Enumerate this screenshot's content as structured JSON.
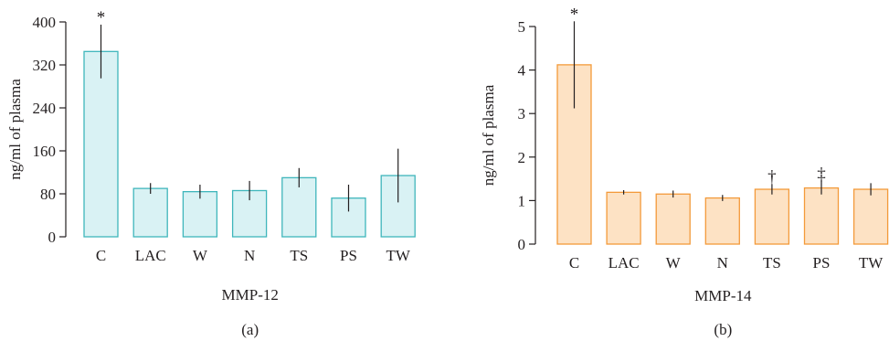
{
  "chart_data": [
    {
      "type": "bar",
      "panel_label": "(a)",
      "xlabel": "MMP-12",
      "ylabel": "ng/ml of plasma",
      "ylim": [
        0,
        400
      ],
      "yticks": [
        0,
        80,
        160,
        240,
        320,
        400
      ],
      "categories": [
        "C",
        "LAC",
        "W",
        "N",
        "TS",
        "PS",
        "TW"
      ],
      "values": [
        345,
        90,
        84,
        86,
        110,
        72,
        114
      ],
      "errors": [
        50,
        10,
        13,
        18,
        18,
        25,
        50
      ],
      "annotations": [
        "*",
        "",
        "",
        "",
        "",
        "",
        ""
      ],
      "colors": {
        "fill": "#d9f2f4",
        "stroke": "#3fb6bb"
      },
      "grid": false,
      "legend": "none"
    },
    {
      "type": "bar",
      "panel_label": "(b)",
      "xlabel": "MMP-14",
      "ylabel": "ng/ml of plasma",
      "ylim": [
        0,
        5
      ],
      "yticks": [
        0,
        1,
        2,
        3,
        4,
        5
      ],
      "categories": [
        "C",
        "LAC",
        "W",
        "N",
        "TS",
        "PS",
        "TW"
      ],
      "values": [
        4.12,
        1.19,
        1.15,
        1.06,
        1.26,
        1.29,
        1.26
      ],
      "errors": [
        1.0,
        0.05,
        0.08,
        0.07,
        0.12,
        0.15,
        0.14
      ],
      "annotations": [
        "*",
        "",
        "",
        "",
        "†",
        "‡",
        ""
      ],
      "colors": {
        "fill": "#fde2c4",
        "stroke": "#f39a3a"
      },
      "grid": false,
      "legend": "none"
    }
  ]
}
